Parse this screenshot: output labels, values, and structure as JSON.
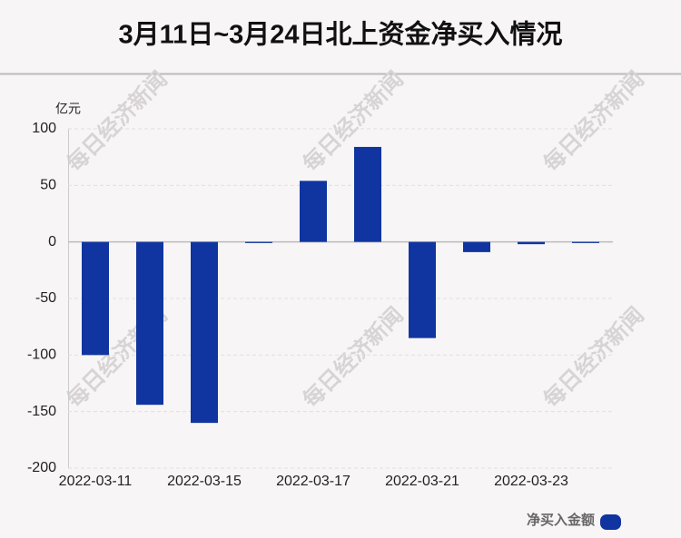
{
  "chart_data": {
    "type": "bar",
    "title": "3月11日~3月24日北上资金净买入情况",
    "unit_label": "亿元",
    "watermark": "每日经济新闻",
    "categories": [
      "2022-03-11",
      null,
      "2022-03-15",
      null,
      "2022-03-17",
      null,
      "2022-03-21",
      null,
      "2022-03-23",
      null
    ],
    "series": [
      {
        "name": "净买入金额",
        "color": "#1035a0",
        "values": [
          -100,
          -144,
          -160,
          -1,
          54,
          84,
          -85,
          -9,
          -2,
          -1
        ]
      }
    ],
    "ylim": [
      -200,
      100
    ],
    "yticks": [
      -200,
      -150,
      -100,
      -50,
      0,
      50,
      100
    ],
    "grid": true,
    "legend": "bottom-right"
  }
}
